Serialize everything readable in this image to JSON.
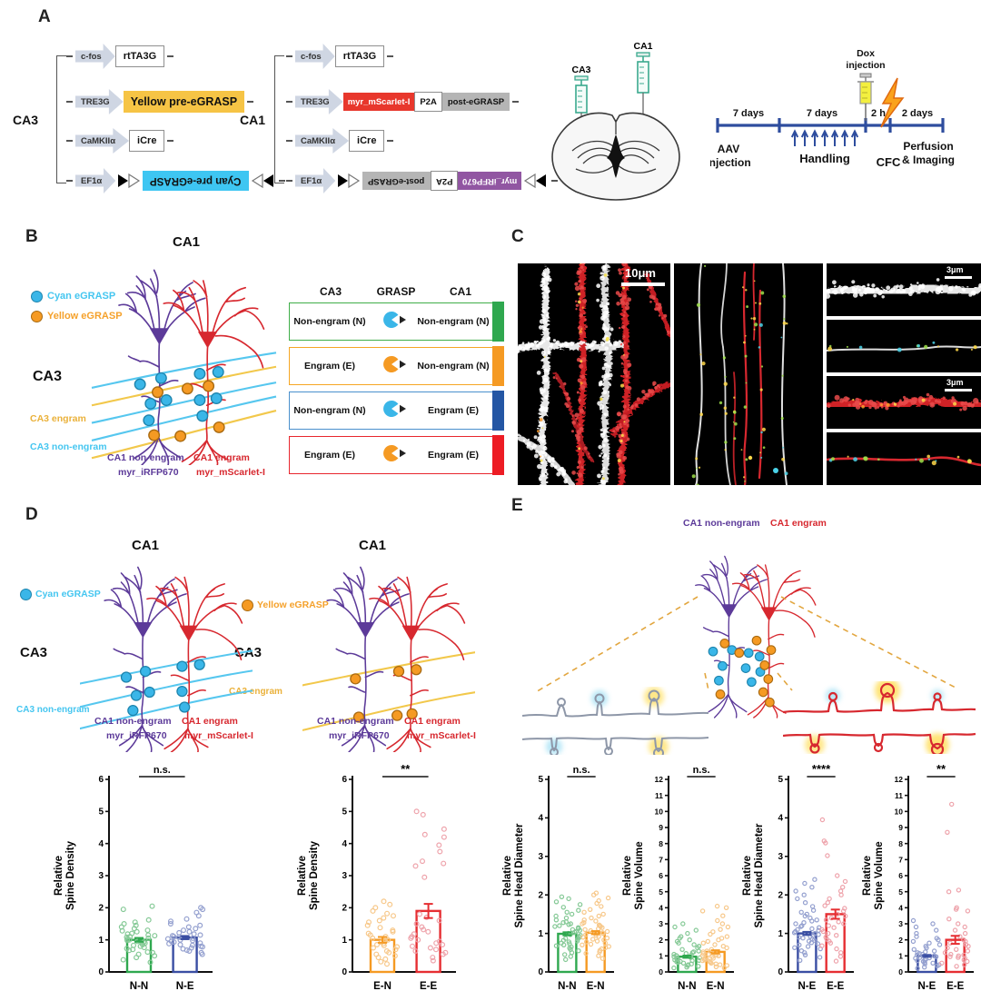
{
  "colors": {
    "green": "#2fa84f",
    "orange": "#f59a23",
    "blue": "#3a4ea3",
    "red": "#e62e32",
    "cyan": "#38b6e9",
    "yellow_line": "#f2c84b",
    "purple": "#5c3a99",
    "scarlet": "#d7282f",
    "timeline_blue": "#2e4d9e"
  },
  "panel_a": {
    "letter": "A",
    "ca3_group_label": "CA3",
    "ca1_group_label": "CA1",
    "ca3_rows": [
      {
        "promoter": "c-fos",
        "boxes": [
          {
            "label": "rtTA3G",
            "style": "white"
          }
        ]
      },
      {
        "promoter": "TRE3G",
        "boxes": [
          {
            "label": "Yellow pre-eGRASP",
            "style": "yellow"
          }
        ]
      },
      {
        "promoter": "CaMKIIα",
        "boxes": [
          {
            "label": "iCre",
            "style": "white"
          }
        ]
      },
      {
        "promoter": "EF1α",
        "lox": true,
        "boxes": [
          {
            "label": "Cyan pre-eGRASP",
            "style": "cyan",
            "flip": true
          }
        ]
      }
    ],
    "ca1_rows": [
      {
        "promoter": "c-fos",
        "boxes": [
          {
            "label": "rtTA3G",
            "style": "white"
          }
        ]
      },
      {
        "promoter": "TRE3G",
        "boxes": [
          {
            "label": "myr_mScarlet-I",
            "style": "red"
          },
          {
            "label": "P2A",
            "style": "white-sm"
          },
          {
            "label": "post-eGRASP",
            "style": "gray"
          }
        ]
      },
      {
        "promoter": "CaMKIIα",
        "boxes": [
          {
            "label": "iCre",
            "style": "white"
          }
        ]
      },
      {
        "promoter": "EF1α",
        "lox": true,
        "boxes": [
          {
            "label": "post-eGRASP",
            "style": "gray",
            "flip": true
          },
          {
            "label": "P2A",
            "style": "white-sm",
            "flip": true
          },
          {
            "label": "myr_iRFP670",
            "style": "purple",
            "flip": true
          }
        ]
      }
    ],
    "injection": {
      "ca3": "CA3",
      "ca1": "CA1"
    },
    "timeline": {
      "seg1": "7 days",
      "start_label": [
        "AAV",
        "injection"
      ],
      "seg2": "7 days",
      "handling": "Handling",
      "dox": [
        "Dox",
        "injection"
      ],
      "seg3": "2 h",
      "cfc": "CFC",
      "seg4": "2 days",
      "end_label": [
        "Perfusion",
        "& Imaging"
      ]
    }
  },
  "panel_b": {
    "letter": "B",
    "title": "CA1",
    "legend": [
      {
        "label": "Cyan eGRASP"
      },
      {
        "label": "Yellow eGRASP"
      }
    ],
    "ca3": "CA3",
    "ca3_engram": "CA3 engram",
    "ca3_nonengram": "CA3 non-engram",
    "ca1_nonengram": "CA1 non-engram",
    "ca1_engram": "CA1 engram",
    "myr_irfp": "myr_iRFP670",
    "myr_mscarlet": "myr_mScarlet-I",
    "table": {
      "headers": [
        "CA3",
        "GRASP",
        "CA1"
      ],
      "rows": [
        {
          "ca3": "Non-engram (N)",
          "ca1": "Non-engram (N)",
          "pac": "#3ab6e8",
          "color": "#3fae49",
          "bar": "#2fa84f"
        },
        {
          "ca3": "Engram (E)",
          "ca1": "Non-engram (N)",
          "pac": "#f59a23",
          "color": "#f5a623",
          "bar": "#f59a23"
        },
        {
          "ca3": "Non-engram (N)",
          "ca1": "Engram (E)",
          "pac": "#3ab6e8",
          "color": "#4a90cd",
          "bar": "#2456a4"
        },
        {
          "ca3": "Engram (E)",
          "ca1": "Engram (E)",
          "pac": "#f59a23",
          "color": "#e8262d",
          "bar": "#ed1c24"
        }
      ]
    }
  },
  "panel_c": {
    "letter": "C",
    "scale_main": "10μm",
    "scale_inset1": "3μm",
    "scale_inset2": "3μm"
  },
  "panel_d": {
    "letter": "D",
    "title_left": "CA1",
    "title_right": "CA1",
    "legend_cyan": "Cyan eGRASP",
    "legend_yellow": "Yellow eGRASP",
    "ca3_left": "CA3",
    "ca3_right": "CA3",
    "ca3_nonengram": "CA3 non-engram",
    "ca3_engram": "CA3 engram",
    "ca1_nonengram": "CA1 non-engram",
    "ca1_engram": "CA1 engram",
    "myr_irfp": "myr_iRFP670",
    "myr_mscarlet": "myr_mScarlet-I"
  },
  "panel_e": {
    "letter": "E",
    "ca1_nonengram": "CA1 non-engram",
    "ca1_engram": "CA1 engram"
  },
  "chart_data": [
    {
      "panel": "D",
      "type": "bar-scatter",
      "ylabel": [
        "Relative",
        "Spine Density"
      ],
      "ymax": 6,
      "sig": "n.s.",
      "groups": [
        {
          "label": "N-N",
          "color": "#2fa84f",
          "light": "#85c996",
          "mean": 1.0,
          "sem": 0.06,
          "points": [
            0.3,
            0.38,
            0.45,
            0.5,
            0.55,
            0.6,
            0.62,
            0.67,
            0.7,
            0.73,
            0.76,
            0.8,
            0.83,
            0.85,
            0.88,
            0.9,
            0.93,
            0.95,
            0.98,
            1.0,
            1.02,
            1.05,
            1.08,
            1.1,
            1.13,
            1.15,
            1.18,
            1.2,
            1.25,
            1.28,
            1.3,
            1.35,
            1.4,
            1.45,
            1.5,
            1.55,
            1.62,
            1.95,
            2.05
          ]
        },
        {
          "label": "N-E",
          "color": "#3a4ea3",
          "light": "#94a0cf",
          "mean": 1.07,
          "sem": 0.05,
          "points": [
            0.55,
            0.6,
            0.65,
            0.68,
            0.72,
            0.75,
            0.78,
            0.8,
            0.83,
            0.85,
            0.88,
            0.9,
            0.93,
            0.95,
            0.98,
            1.0,
            1.03,
            1.05,
            1.08,
            1.1,
            1.13,
            1.15,
            1.18,
            1.22,
            1.25,
            1.3,
            1.35,
            1.4,
            1.45,
            1.5,
            1.58,
            1.65,
            1.75,
            1.85,
            1.95,
            2.0
          ]
        }
      ]
    },
    {
      "panel": "D",
      "type": "bar-scatter",
      "ylabel": [
        "Relative",
        "Spine Density"
      ],
      "ymax": 6,
      "sig": "**",
      "groups": [
        {
          "label": "E-N",
          "color": "#f59a23",
          "light": "#f7c88a",
          "mean": 1.0,
          "sem": 0.09,
          "points": [
            0.25,
            0.32,
            0.4,
            0.45,
            0.5,
            0.55,
            0.6,
            0.65,
            0.7,
            0.75,
            0.78,
            0.82,
            0.85,
            0.88,
            0.92,
            0.95,
            1.0,
            1.02,
            1.05,
            1.1,
            1.15,
            1.2,
            1.25,
            1.3,
            1.38,
            1.45,
            1.55,
            1.6,
            1.68,
            1.75,
            1.82,
            1.9,
            2.0,
            2.1,
            2.2
          ]
        },
        {
          "label": "E-E",
          "color": "#e62e32",
          "light": "#eea3ab",
          "mean": 1.9,
          "sem": 0.22,
          "points": [
            0.35,
            0.45,
            0.55,
            0.6,
            0.65,
            0.7,
            0.75,
            0.8,
            0.85,
            0.9,
            0.95,
            1.0,
            1.05,
            1.1,
            1.18,
            1.25,
            1.32,
            1.4,
            1.5,
            1.6,
            1.7,
            1.8,
            2.95,
            3.3,
            3.38,
            3.45,
            3.75,
            3.95,
            4.2,
            4.28,
            4.45,
            4.9,
            5.0
          ]
        }
      ]
    },
    {
      "panel": "E",
      "type": "bar-scatter",
      "ylabel": [
        "Relative",
        "Spine Head Diameter"
      ],
      "ymax": 5,
      "sig": "n.s.",
      "groups": [
        {
          "label": "N-N",
          "color": "#2fa84f",
          "light": "#85c996",
          "mean": 0.99,
          "sem": 0.04,
          "points": [
            0.32,
            0.4,
            0.45,
            0.5,
            0.55,
            0.58,
            0.62,
            0.65,
            0.68,
            0.7,
            0.73,
            0.75,
            0.78,
            0.8,
            0.82,
            0.85,
            0.87,
            0.9,
            0.92,
            0.95,
            0.97,
            1.0,
            1.0,
            1.03,
            1.05,
            1.08,
            1.1,
            1.12,
            1.15,
            1.18,
            1.2,
            1.23,
            1.25,
            1.28,
            1.3,
            1.35,
            1.4,
            1.45,
            1.5,
            1.55,
            1.6,
            1.68,
            1.75,
            1.82,
            1.9,
            1.95
          ]
        },
        {
          "label": "E-N",
          "color": "#f59a23",
          "light": "#f7c88a",
          "mean": 1.02,
          "sem": 0.04,
          "points": [
            0.35,
            0.42,
            0.48,
            0.52,
            0.56,
            0.6,
            0.63,
            0.66,
            0.7,
            0.72,
            0.75,
            0.78,
            0.8,
            0.83,
            0.85,
            0.88,
            0.9,
            0.92,
            0.95,
            0.97,
            1.0,
            1.0,
            1.02,
            1.05,
            1.07,
            1.1,
            1.12,
            1.15,
            1.18,
            1.2,
            1.22,
            1.25,
            1.28,
            1.32,
            1.35,
            1.4,
            1.45,
            1.5,
            1.55,
            1.62,
            1.7,
            1.78,
            1.85,
            1.92,
            2.0,
            2.05
          ]
        }
      ]
    },
    {
      "panel": "E",
      "type": "bar-scatter",
      "ylabel": [
        "Relative",
        "Spine Volume"
      ],
      "ymax": 12,
      "sig": "n.s.",
      "groups": [
        {
          "label": "N-N",
          "color": "#2fa84f",
          "light": "#85c996",
          "mean": 0.95,
          "sem": 0.07,
          "points": [
            0.25,
            0.3,
            0.35,
            0.4,
            0.45,
            0.5,
            0.55,
            0.6,
            0.62,
            0.65,
            0.7,
            0.72,
            0.75,
            0.78,
            0.8,
            0.85,
            0.88,
            0.9,
            0.95,
            1.0,
            1.02,
            1.05,
            1.1,
            1.15,
            1.2,
            1.25,
            1.3,
            1.4,
            1.5,
            1.6,
            1.7,
            1.8,
            1.9,
            2.0,
            2.1,
            2.2,
            2.4,
            2.6,
            2.8,
            3.0
          ]
        },
        {
          "label": "E-N",
          "color": "#f59a23",
          "light": "#f7c88a",
          "mean": 1.25,
          "sem": 0.1,
          "points": [
            0.25,
            0.32,
            0.4,
            0.45,
            0.5,
            0.55,
            0.6,
            0.65,
            0.7,
            0.75,
            0.8,
            0.85,
            0.9,
            0.95,
            1.0,
            1.02,
            1.05,
            1.1,
            1.15,
            1.2,
            1.25,
            1.3,
            1.4,
            1.5,
            1.6,
            1.7,
            1.8,
            1.9,
            2.0,
            2.1,
            2.2,
            2.35,
            2.5,
            2.65,
            2.8,
            3.0,
            3.2,
            3.5,
            3.8,
            4.0,
            4.1
          ]
        }
      ]
    },
    {
      "panel": "E",
      "type": "bar-scatter",
      "ylabel": [
        "Relative",
        "Spine Head Diameter"
      ],
      "ymax": 5,
      "sig": "****",
      "groups": [
        {
          "label": "N-E",
          "color": "#3a4ea3",
          "light": "#94a0cf",
          "mean": 1.0,
          "sem": 0.04,
          "points": [
            0.3,
            0.38,
            0.44,
            0.5,
            0.55,
            0.6,
            0.63,
            0.66,
            0.7,
            0.73,
            0.76,
            0.8,
            0.82,
            0.85,
            0.88,
            0.9,
            0.92,
            0.95,
            0.97,
            1.0,
            1.0,
            1.02,
            1.05,
            1.08,
            1.1,
            1.12,
            1.15,
            1.18,
            1.2,
            1.25,
            1.28,
            1.32,
            1.35,
            1.4,
            1.45,
            1.5,
            1.55,
            1.6,
            1.7,
            1.8,
            1.9,
            2.0,
            2.1,
            2.2,
            2.3,
            2.4
          ]
        },
        {
          "label": "E-E",
          "color": "#e62e32",
          "light": "#eea3ab",
          "mean": 1.5,
          "sem": 0.12,
          "points": [
            0.28,
            0.4,
            0.5,
            0.6,
            0.68,
            0.75,
            0.8,
            0.85,
            0.9,
            0.95,
            1.0,
            1.05,
            1.1,
            1.15,
            1.2,
            1.25,
            1.3,
            1.35,
            1.4,
            1.45,
            1.5,
            1.58,
            1.65,
            1.72,
            1.8,
            1.9,
            2.0,
            2.1,
            2.2,
            2.35,
            2.5,
            3.02,
            3.35,
            3.4,
            3.95
          ]
        }
      ]
    },
    {
      "panel": "E",
      "type": "bar-scatter",
      "ylabel": [
        "Relative",
        "Spine Volume"
      ],
      "ymax": 12,
      "sig": "**",
      "groups": [
        {
          "label": "N-E",
          "color": "#3a4ea3",
          "light": "#94a0cf",
          "mean": 1.0,
          "sem": 0.06,
          "points": [
            0.22,
            0.3,
            0.38,
            0.45,
            0.5,
            0.55,
            0.6,
            0.65,
            0.7,
            0.75,
            0.8,
            0.85,
            0.88,
            0.9,
            0.95,
            1.0,
            1.0,
            1.05,
            1.1,
            1.15,
            1.2,
            1.25,
            1.3,
            1.4,
            1.5,
            1.6,
            1.7,
            1.8,
            1.9,
            2.0,
            2.1,
            2.2,
            2.4,
            2.6,
            2.8,
            3.0,
            3.2
          ]
        },
        {
          "label": "E-E",
          "color": "#e62e32",
          "light": "#eea3ab",
          "mean": 2.0,
          "sem": 0.25,
          "points": [
            0.35,
            0.45,
            0.55,
            0.65,
            0.75,
            0.85,
            0.9,
            0.95,
            1.0,
            1.05,
            1.1,
            1.2,
            1.3,
            1.4,
            1.5,
            1.6,
            1.7,
            1.8,
            1.9,
            2.0,
            2.2,
            2.4,
            2.6,
            2.8,
            3.0,
            3.3,
            3.8,
            3.9,
            4.0,
            5.0,
            5.1,
            8.7,
            10.45
          ]
        }
      ]
    }
  ]
}
